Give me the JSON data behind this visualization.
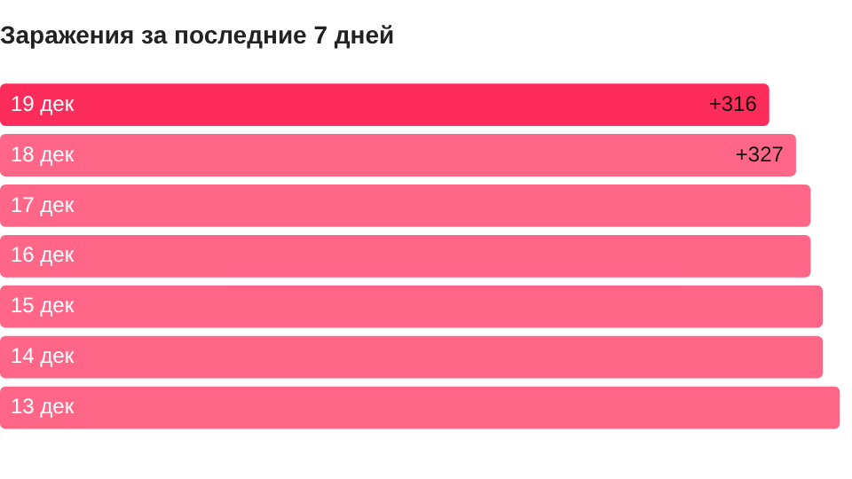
{
  "chart_data": {
    "type": "bar",
    "orientation": "horizontal",
    "title": "Заражения за последние 7 дней",
    "categories": [
      "19 дек",
      "18 дек",
      "17 дек",
      "16 дек",
      "15 дек",
      "14 дек",
      "13 дек"
    ],
    "values": [
      316,
      327,
      333,
      333,
      338,
      338,
      345
    ],
    "colors": [
      "#fe2c5a",
      "#ff6688",
      "#ff6688",
      "#ff6688",
      "#ff6688",
      "#ff6688",
      "#ff6688"
    ],
    "value_labels": [
      "+316",
      "+327",
      null,
      null,
      null,
      null,
      null
    ],
    "legend": false
  }
}
